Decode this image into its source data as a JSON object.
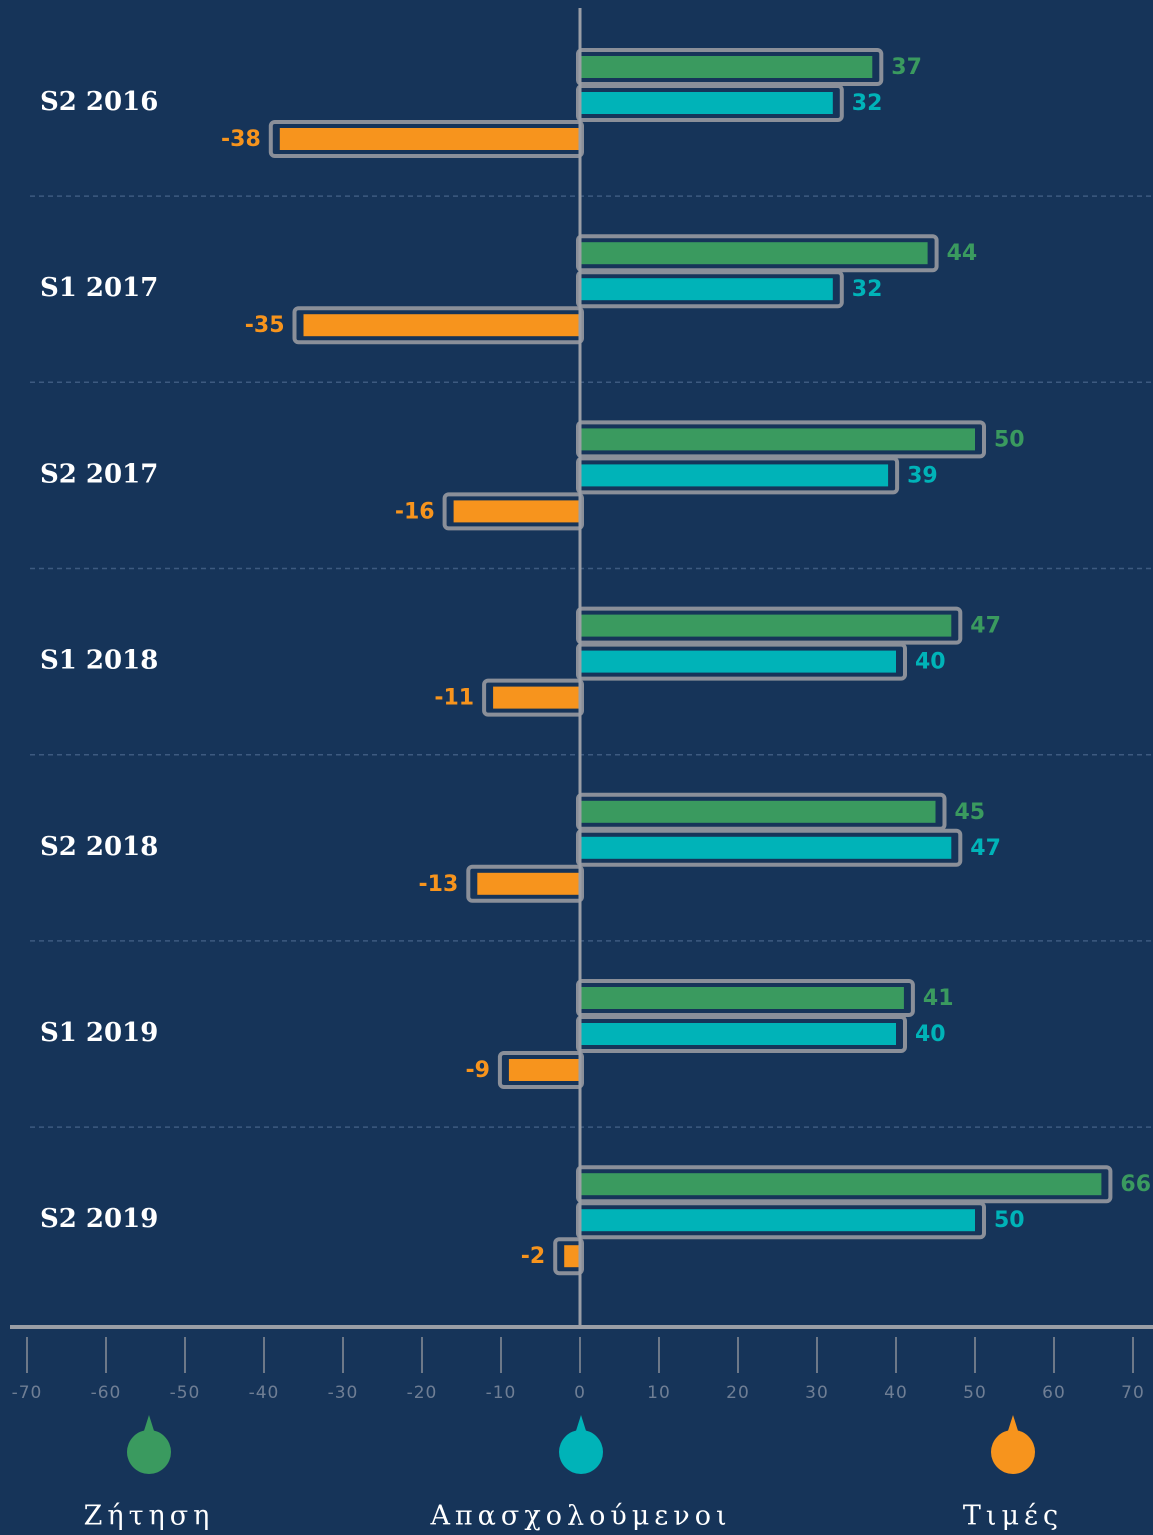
{
  "chart_data": {
    "type": "hbar",
    "categories": [
      "S2 2016",
      "S1 2017",
      "S2 2017",
      "S1 2018",
      "S2 2018",
      "S1 2019",
      "S2 2019"
    ],
    "series": [
      {
        "name": "Ζήτηση",
        "color": "#3a9a5f",
        "values": [
          37,
          44,
          50,
          47,
          45,
          41,
          66
        ]
      },
      {
        "name": "Απασχολούμενοι",
        "color": "#00b3b8",
        "values": [
          32,
          32,
          39,
          40,
          47,
          40,
          50
        ]
      },
      {
        "name": "Τιμές",
        "color": "#f7941d",
        "values": [
          -38,
          -35,
          -16,
          -11,
          -13,
          -9,
          -2
        ]
      }
    ],
    "xlim": [
      -70,
      70
    ],
    "xticks": [
      -70,
      -60,
      -50,
      -40,
      -30,
      -20,
      -10,
      0,
      10,
      20,
      30,
      40,
      50,
      60,
      70
    ],
    "legend": "bottom"
  }
}
